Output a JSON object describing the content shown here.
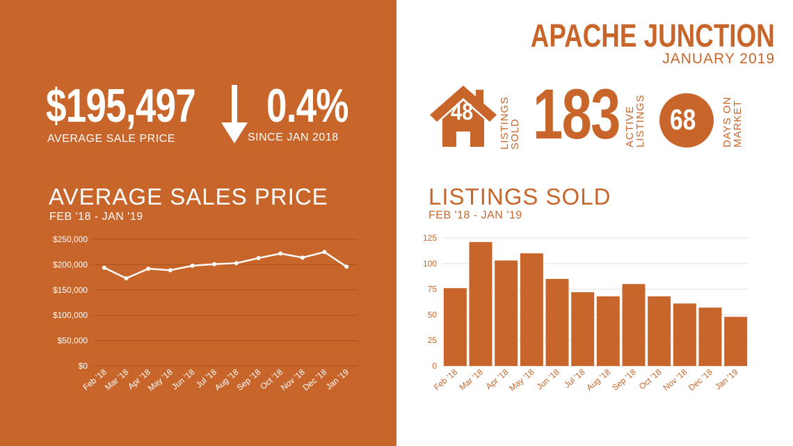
{
  "left": {
    "avg_price_value": "$195,497",
    "avg_price_caption": "AVERAGE  SALE PRICE",
    "change_value": "0.4%",
    "change_caption": "SINCE JAN 2018",
    "change_direction_icon": "arrow-down-icon",
    "chart_title": "AVERAGE SALES PRICE",
    "chart_subtitle": "FEB '18 - JAN '19"
  },
  "right": {
    "city": "APACHE JUNCTION",
    "month": "JANUARY 2019",
    "listings_sold_value": "48",
    "listings_sold_label_1": "LISTINGS",
    "listings_sold_label_2": "SOLD",
    "active_value": "183",
    "active_label_1": "ACTIVE",
    "active_label_2": "LISTINGS",
    "dom_value": "68",
    "dom_label_1": "DAYS ON",
    "dom_label_2": "MARKET",
    "chart_title": "LISTINGS SOLD",
    "chart_subtitle": "FEB '18 - JAN '19"
  },
  "colors": {
    "accent": "#c8652a",
    "white": "#ffffff"
  },
  "chart_data": [
    {
      "type": "line",
      "title": "AVERAGE SALES PRICE",
      "subtitle": "FEB '18 - JAN '19",
      "categories": [
        "Feb '18",
        "Mar '18",
        "Apr '18",
        "May '18",
        "Jun '18",
        "Jul '18",
        "Aug '18",
        "Sep '18",
        "Oct '18",
        "Nov '18",
        "Dec '18",
        "Jan '19"
      ],
      "values": [
        194000,
        173000,
        192000,
        189000,
        198000,
        201000,
        203000,
        213000,
        222000,
        214000,
        225000,
        196000
      ],
      "ylim": [
        0,
        250000
      ],
      "yticks": [
        "$0",
        "$50,000",
        "$100,000",
        "$150,000",
        "$200,000",
        "$250,000"
      ],
      "grid": true
    },
    {
      "type": "bar",
      "title": "LISTINGS SOLD",
      "subtitle": "FEB '18 - JAN '19",
      "categories": [
        "Feb '18",
        "Mar '18",
        "Apr '18",
        "May '18",
        "Jun '18",
        "Jul '18",
        "Aug '18",
        "Sep '18",
        "Oct '18",
        "Nov '18",
        "Dec '18",
        "Jan '19"
      ],
      "values": [
        76,
        121,
        103,
        110,
        85,
        72,
        68,
        80,
        68,
        61,
        57,
        48
      ],
      "ylim": [
        0,
        125
      ],
      "yticks": [
        "0",
        "25",
        "50",
        "75",
        "100",
        "125"
      ],
      "grid": true
    }
  ]
}
